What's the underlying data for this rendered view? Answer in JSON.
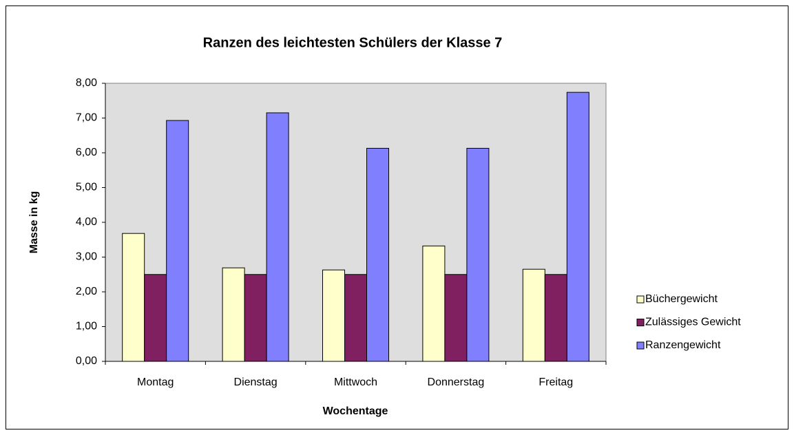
{
  "chart_data": {
    "type": "bar",
    "title": "Ranzen des leichtesten Schülers der Klasse 7",
    "x_label": "Wochentage",
    "y_label": "Masse in kg",
    "categories": [
      "Montag",
      "Dienstag",
      "Mittwoch",
      "Donnerstag",
      "Freitag"
    ],
    "series": [
      {
        "name": "Büchergewicht",
        "color": "#ffffcc",
        "values": [
          3.68,
          2.69,
          2.63,
          3.32,
          2.65
        ]
      },
      {
        "name": "Zulässiges Gewicht",
        "color": "#802060",
        "values": [
          2.5,
          2.5,
          2.5,
          2.5,
          2.5
        ]
      },
      {
        "name": "Ranzengewicht",
        "color": "#8080ff",
        "values": [
          6.93,
          7.15,
          6.13,
          6.13,
          7.74
        ]
      }
    ],
    "ylim": [
      0,
      8
    ],
    "yticks": [
      {
        "value": 0,
        "label": "0,00"
      },
      {
        "value": 1,
        "label": "1,00"
      },
      {
        "value": 2,
        "label": "2,00"
      },
      {
        "value": 3,
        "label": "3,00"
      },
      {
        "value": 4,
        "label": "4,00"
      },
      {
        "value": 5,
        "label": "5,00"
      },
      {
        "value": 6,
        "label": "6,00"
      },
      {
        "value": 7,
        "label": "7,00"
      },
      {
        "value": 8,
        "label": "8,00"
      }
    ],
    "legend": "right"
  }
}
